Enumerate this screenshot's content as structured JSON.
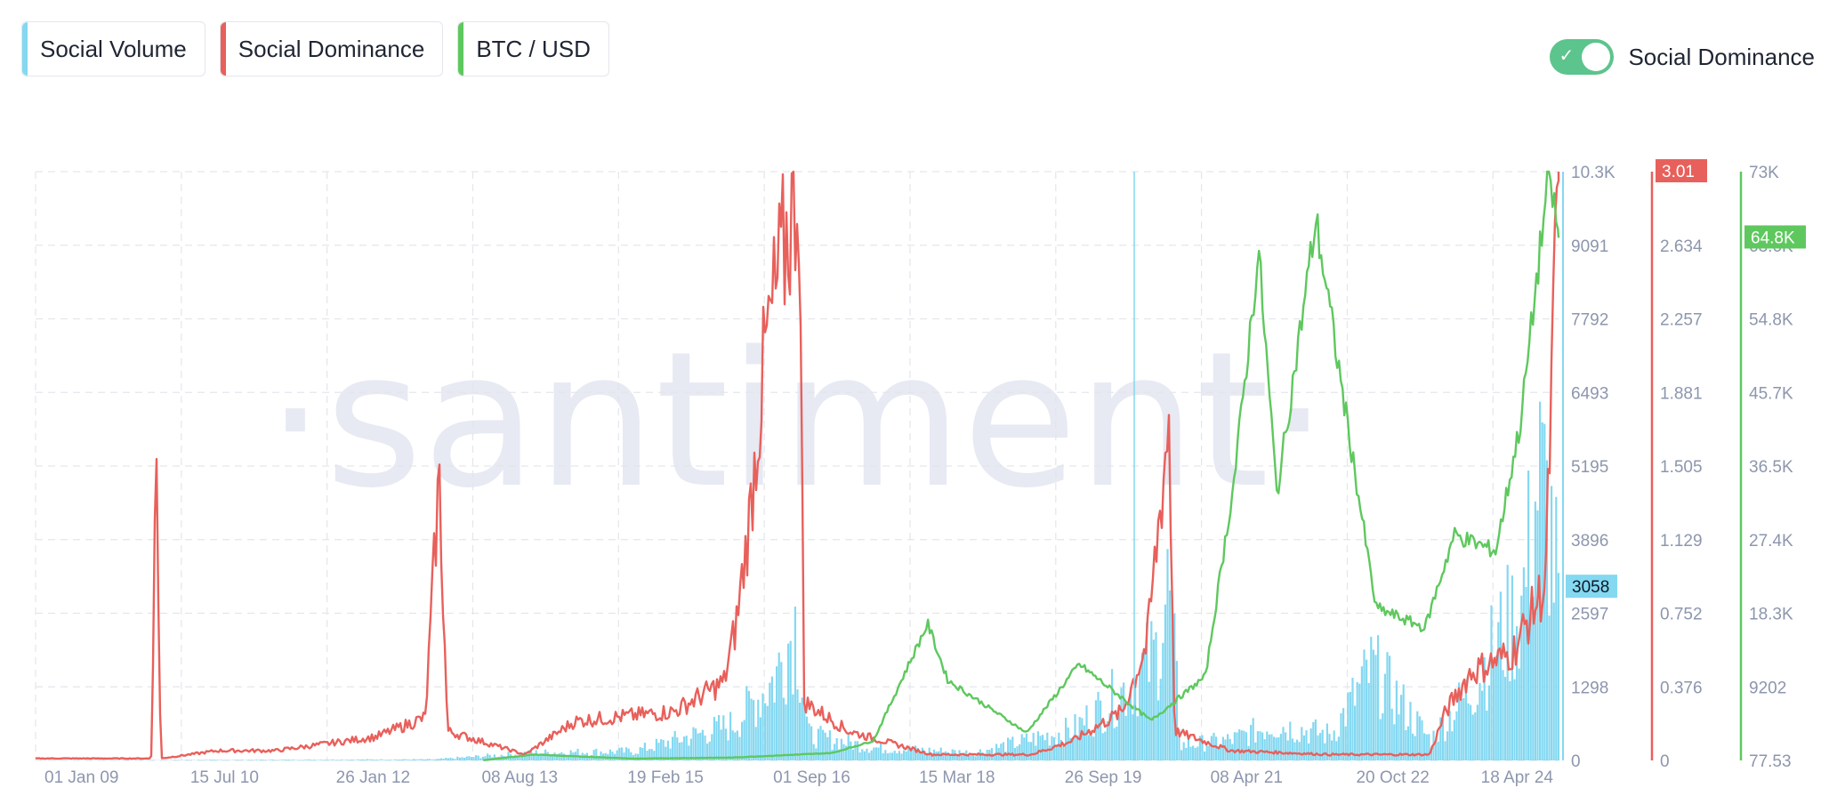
{
  "legend": [
    {
      "label": "Social Volume",
      "color": "#84d8f1"
    },
    {
      "label": "Social Dominance",
      "color": "#e8605b"
    },
    {
      "label": "BTC / USD",
      "color": "#5ec85e"
    }
  ],
  "toggle": {
    "label": "Social Dominance",
    "on": true
  },
  "watermark": "·santiment·",
  "chart_data": {
    "type": "line",
    "x_tick_labels": [
      "01 Jan 09",
      "15 Jul 10",
      "26 Jan 12",
      "08 Aug 13",
      "19 Feb 15",
      "01 Sep 16",
      "15 Mar 18",
      "26 Sep 19",
      "08 Apr 21",
      "20 Oct 22",
      "18 Apr 24"
    ],
    "xlim": [
      "2009-01-01",
      "2024-04-18"
    ],
    "grid": true,
    "axes": {
      "social_volume": {
        "ticks": [
          "10.3K",
          "9091",
          "7792",
          "6493",
          "5195",
          "3896",
          "2597",
          "1298",
          "0"
        ],
        "ylim": [
          0,
          10390
        ],
        "highlight": "3058",
        "color": "#84d8f1"
      },
      "social_dominance": {
        "ticks": [
          "2.634",
          "2.257",
          "1.881",
          "1.505",
          "1.129",
          "0.752",
          "0.376",
          "0"
        ],
        "ylim": [
          0,
          3.01
        ],
        "highlight": "3.01",
        "color": "#e8605b"
      },
      "btc_usd": {
        "ticks": [
          "73K",
          "63.6K",
          "54.8K",
          "45.7K",
          "36.5K",
          "27.4K",
          "18.3K",
          "9202",
          "77.53"
        ],
        "ylim": [
          77.53,
          73000
        ],
        "highlight": "64.8K",
        "color": "#5ec85e"
      }
    },
    "series": [
      {
        "name": "Social Volume",
        "type": "bar",
        "points": [
          [
            "2009-01-01",
            0
          ],
          [
            "2013-01-01",
            20
          ],
          [
            "2014-01-01",
            150
          ],
          [
            "2015-01-01",
            180
          ],
          [
            "2016-01-01",
            700
          ],
          [
            "2016-06-01",
            1600
          ],
          [
            "2016-08-15",
            2700
          ],
          [
            "2016-10-01",
            500
          ],
          [
            "2017-06-01",
            250
          ],
          [
            "2018-06-01",
            150
          ],
          [
            "2019-06-01",
            600
          ],
          [
            "2020-01-01",
            1500
          ],
          [
            "2020-04-01",
            2100
          ],
          [
            "2020-05-15",
            3400
          ],
          [
            "2020-07-01",
            300
          ],
          [
            "2021-01-01",
            400
          ],
          [
            "2021-06-01",
            700
          ],
          [
            "2022-01-01",
            500
          ],
          [
            "2022-06-01",
            1800
          ],
          [
            "2023-01-01",
            400
          ],
          [
            "2023-06-01",
            1400
          ],
          [
            "2023-09-01",
            2300
          ],
          [
            "2023-12-01",
            3000
          ],
          [
            "2024-02-01",
            5500
          ],
          [
            "2024-03-10",
            4800
          ],
          [
            "2024-04-18",
            3058
          ]
        ]
      },
      {
        "name": "Social Dominance",
        "type": "line",
        "points": [
          [
            "2009-01-01",
            0.01
          ],
          [
            "2010-03-01",
            0.01
          ],
          [
            "2010-03-20",
            1.62
          ],
          [
            "2010-04-05",
            0.01
          ],
          [
            "2010-11-01",
            0.05
          ],
          [
            "2011-06-01",
            0.05
          ],
          [
            "2012-06-01",
            0.12
          ],
          [
            "2012-12-01",
            0.22
          ],
          [
            "2013-01-20",
            1.45
          ],
          [
            "2013-02-20",
            0.15
          ],
          [
            "2013-12-01",
            0.03
          ],
          [
            "2014-06-01",
            0.2
          ],
          [
            "2015-06-01",
            0.25
          ],
          [
            "2015-12-01",
            0.4
          ],
          [
            "2016-01-15",
            0.7
          ],
          [
            "2016-03-01",
            1.2
          ],
          [
            "2016-05-01",
            2.1
          ],
          [
            "2016-07-15",
            2.65
          ],
          [
            "2016-09-01",
            3.0
          ],
          [
            "2016-09-20",
            0.3
          ],
          [
            "2017-03-01",
            0.15
          ],
          [
            "2018-01-01",
            0.03
          ],
          [
            "2019-01-01",
            0.03
          ],
          [
            "2019-06-01",
            0.1
          ],
          [
            "2019-12-01",
            0.25
          ],
          [
            "2020-03-01",
            0.6
          ],
          [
            "2020-05-20",
            1.75
          ],
          [
            "2020-06-10",
            0.15
          ],
          [
            "2021-01-01",
            0.05
          ],
          [
            "2022-01-01",
            0.03
          ],
          [
            "2023-01-01",
            0.03
          ],
          [
            "2023-03-01",
            0.25
          ],
          [
            "2023-06-01",
            0.45
          ],
          [
            "2023-11-01",
            0.55
          ],
          [
            "2024-03-01",
            0.9
          ],
          [
            "2024-04-18",
            3.01
          ]
        ]
      },
      {
        "name": "BTC / USD",
        "type": "line",
        "points": [
          [
            "2013-07-01",
            100
          ],
          [
            "2014-01-01",
            800
          ],
          [
            "2015-01-01",
            300
          ],
          [
            "2016-01-01",
            430
          ],
          [
            "2017-01-01",
            1000
          ],
          [
            "2017-06-01",
            2500
          ],
          [
            "2017-12-17",
            17000
          ],
          [
            "2018-03-01",
            10000
          ],
          [
            "2018-12-15",
            3500
          ],
          [
            "2019-06-26",
            12000
          ],
          [
            "2020-03-15",
            5000
          ],
          [
            "2020-10-01",
            10500
          ],
          [
            "2021-01-15",
            35000
          ],
          [
            "2021-04-14",
            63000
          ],
          [
            "2021-06-20",
            33000
          ],
          [
            "2021-11-10",
            67000
          ],
          [
            "2022-06-18",
            19000
          ],
          [
            "2022-12-15",
            16500
          ],
          [
            "2023-04-01",
            28000
          ],
          [
            "2023-09-01",
            26000
          ],
          [
            "2023-12-01",
            42000
          ],
          [
            "2024-03-14",
            73000
          ],
          [
            "2024-04-18",
            64800
          ]
        ]
      }
    ]
  }
}
